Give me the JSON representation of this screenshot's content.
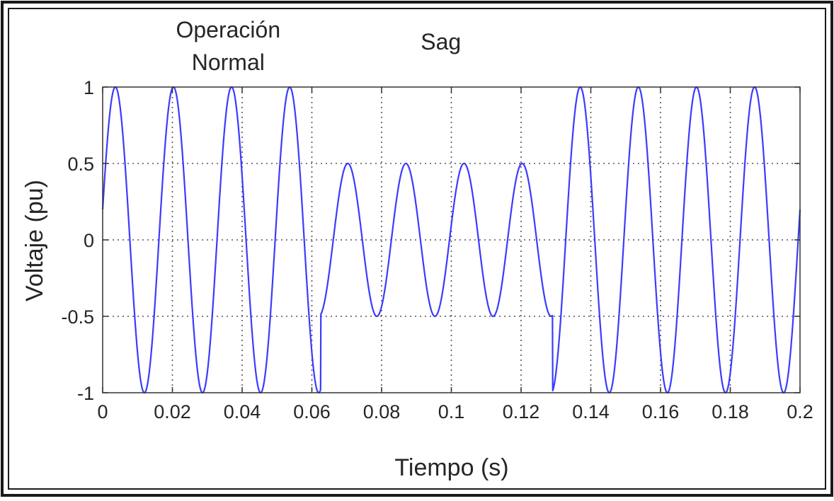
{
  "chart_data": {
    "type": "line",
    "title": "",
    "xlabel": "Tiempo (s)",
    "ylabel": "Voltaje (pu)",
    "xlim": [
      0,
      0.2
    ],
    "ylim": [
      -1,
      1
    ],
    "grid": true,
    "x_ticks": [
      0,
      0.02,
      0.04,
      0.06,
      0.08,
      0.1,
      0.12,
      0.14,
      0.16,
      0.18,
      0.2
    ],
    "x_tick_labels": [
      "0",
      "0.02",
      "0.04",
      "0.06",
      "0.08",
      "0.1",
      "0.12",
      "0.14",
      "0.16",
      "0.18",
      "0.2"
    ],
    "y_ticks": [
      1,
      0.5,
      0,
      -0.5,
      -1
    ],
    "y_tick_labels": [
      "1",
      "0.5",
      "0",
      "-0.5",
      "-1"
    ],
    "annotations": [
      {
        "lines": [
          "Operación",
          "Normal"
        ],
        "x": 0.036
      },
      {
        "lines": [
          "Sag"
        ],
        "x": 0.097
      }
    ],
    "series": [
      {
        "color": "#3b3bff",
        "frequency_hz": 60,
        "segments": [
          {
            "x_start": 0,
            "x_end": 0.0625,
            "amplitude": 1
          },
          {
            "x_start": 0.0625,
            "x_end": 0.129,
            "amplitude": 0.5
          },
          {
            "x_start": 0.129,
            "x_end": 0.2,
            "amplitude": 1
          }
        ]
      }
    ]
  }
}
